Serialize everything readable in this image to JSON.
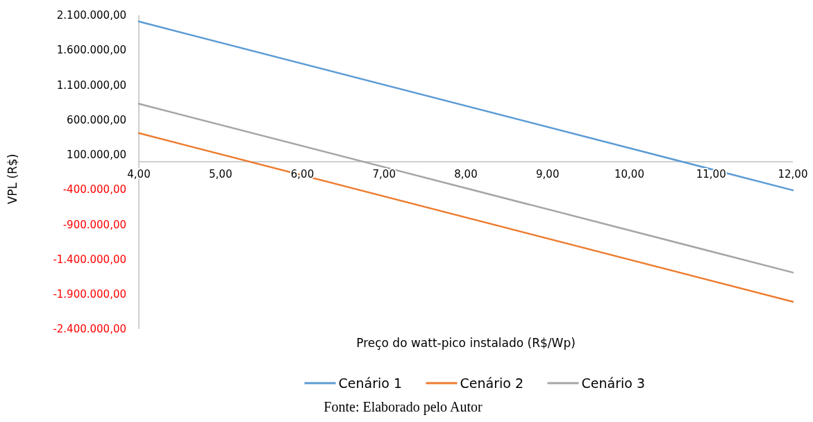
{
  "chart_data": {
    "type": "line",
    "xlabel": "Preço do watt-pico instalado (R$/Wp)",
    "ylabel": "VPL (R$)",
    "x": [
      4,
      12
    ],
    "series": [
      {
        "name": "Cenário 1",
        "color": "#5b9bd5",
        "values": [
          2010000,
          -410000
        ]
      },
      {
        "name": "Cenário 2",
        "color": "#ed7d31",
        "values": [
          410000,
          -2010000
        ]
      },
      {
        "name": "Cenário 3",
        "color": "#a5a5a5",
        "values": [
          830000,
          -1590000
        ]
      }
    ],
    "xlim": [
      4,
      12
    ],
    "xticks": [
      {
        "value": 4,
        "label": "4,00"
      },
      {
        "value": 5,
        "label": "5,00"
      },
      {
        "value": 6,
        "label": "6,00"
      },
      {
        "value": 7,
        "label": "7,00"
      },
      {
        "value": 8,
        "label": "8,00"
      },
      {
        "value": 9,
        "label": "9,00"
      },
      {
        "value": 10,
        "label": "10,00"
      },
      {
        "value": 11,
        "label": "11,00"
      },
      {
        "value": 12,
        "label": "12,00"
      }
    ],
    "ylim": [
      -2400000,
      2100000
    ],
    "yticks": [
      {
        "value": 2100000,
        "label": "2.100.000,00"
      },
      {
        "value": 1600000,
        "label": "1.600.000,00"
      },
      {
        "value": 1100000,
        "label": "1.100.000,00"
      },
      {
        "value": 600000,
        "label": "600.000,00"
      },
      {
        "value": 100000,
        "label": "100.000,00"
      },
      {
        "value": -400000,
        "label": "-400.000,00"
      },
      {
        "value": -900000,
        "label": "-900.000,00"
      },
      {
        "value": -1400000,
        "label": "-1.400.000,00"
      },
      {
        "value": -1900000,
        "label": "-1.900.000,00"
      },
      {
        "value": -2400000,
        "label": "-2.400.000,00"
      }
    ],
    "grid": false,
    "legend": "bottom",
    "marker": "none",
    "line_style": "solid",
    "annotations": [
      "Fonte: Elaborado pelo Autor"
    ]
  }
}
